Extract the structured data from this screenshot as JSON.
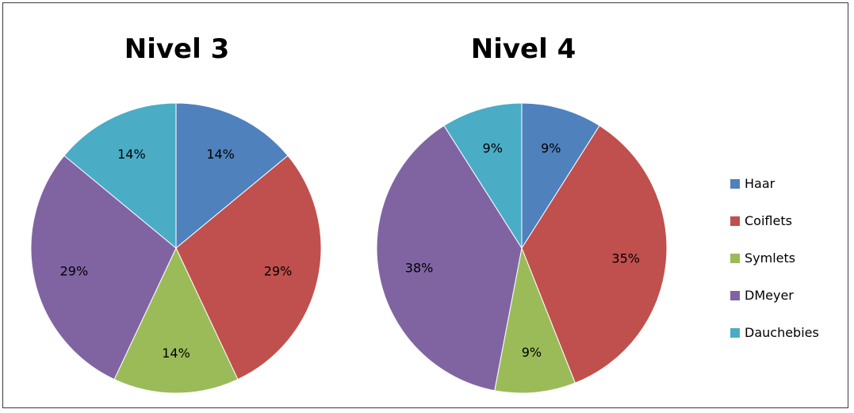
{
  "chart_data": [
    {
      "type": "pie",
      "title": "Nivel 3",
      "categories": [
        "Haar",
        "Coiflets",
        "Symlets",
        "DMeyer",
        "Dauchebies"
      ],
      "values": [
        14,
        29,
        14,
        29,
        14
      ],
      "labels": [
        "14%",
        "29%",
        "14%",
        "29%",
        "14%"
      ],
      "legend": "right"
    },
    {
      "type": "pie",
      "title": "Nivel 4",
      "categories": [
        "Haar",
        "Coiflets",
        "Symlets",
        "DMeyer",
        "Dauchebies"
      ],
      "values": [
        9,
        35,
        9,
        38,
        9
      ],
      "labels": [
        "9%",
        "35%",
        "9%",
        "38%",
        "9%"
      ],
      "legend": "right"
    }
  ],
  "legend": {
    "items": [
      {
        "label": "Haar",
        "color": "#4f81bd"
      },
      {
        "label": "Coiflets",
        "color": "#c0504d"
      },
      {
        "label": "Symlets",
        "color": "#9bbb59"
      },
      {
        "label": "DMeyer",
        "color": "#8064a2"
      },
      {
        "label": "Dauchebies",
        "color": "#4bacc6"
      }
    ]
  }
}
